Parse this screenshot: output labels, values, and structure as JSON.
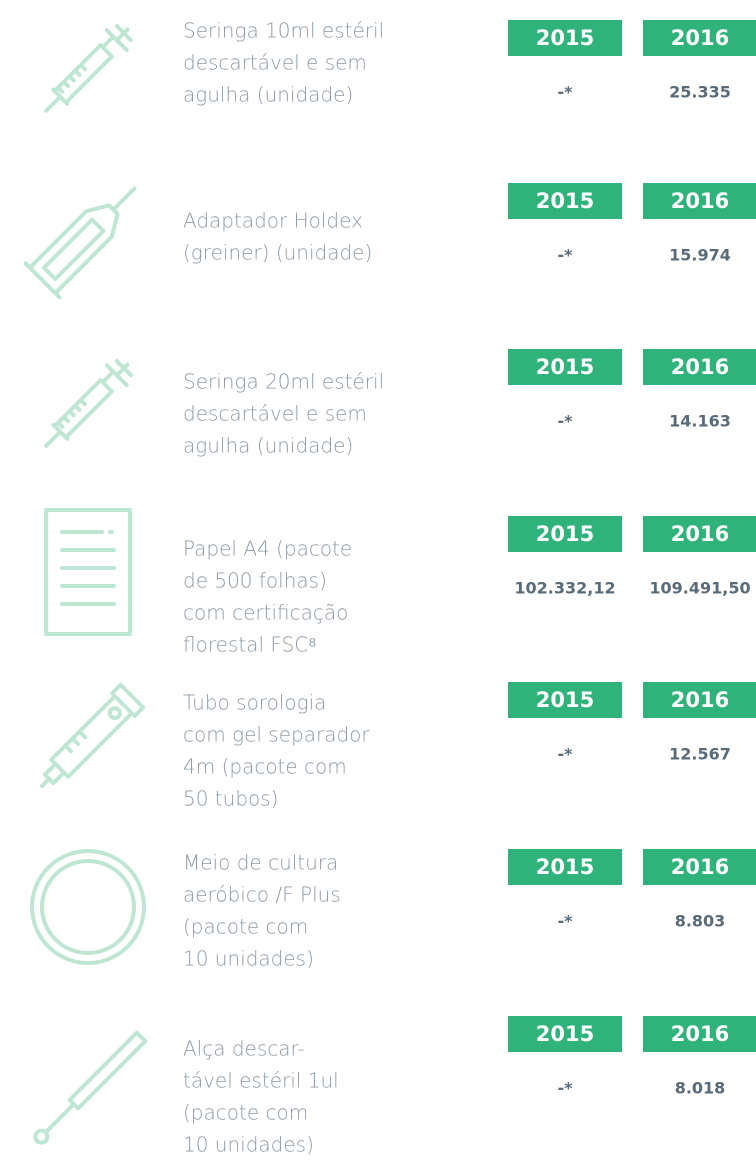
{
  "items": [
    {
      "name": [
        "Seringa 10ml estéril",
        "descartável e sem",
        "agulha (unidade)"
      ],
      "years": [
        "2015",
        "2016"
      ],
      "values": [
        "-*",
        "25.335"
      ]
    },
    {
      "name": [
        "Adaptador Holdex",
        "(greiner) (unidade)"
      ],
      "years": [
        "2015",
        "2016"
      ],
      "values": [
        "-*",
        "15.974"
      ]
    },
    {
      "name": [
        "Seringa 20ml estéril",
        "descartável e sem",
        "agulha (unidade)"
      ],
      "years": [
        "2015",
        "2016"
      ],
      "values": [
        "-*",
        "14.163"
      ]
    },
    {
      "name": [
        "Papel A4 (pacote",
        "de 500 folhas)",
        "com certificação",
        "florestal FSC⁸"
      ],
      "years": [
        "2015",
        "2016"
      ],
      "values": [
        "102.332,12",
        "109.491,50"
      ]
    },
    {
      "name": [
        "Tubo sorologia",
        "com gel separador",
        "4m (pacote com",
        "50 tubos)"
      ],
      "years": [
        "2015",
        "2016"
      ],
      "values": [
        "-*",
        "12.567"
      ]
    },
    {
      "name": [
        "Meio de cultura",
        "aeróbico /F Plus",
        "(pacote com",
        "10 unidades)"
      ],
      "years": [
        "2015",
        "2016"
      ],
      "values": [
        "-*",
        "8.803"
      ]
    },
    {
      "name": [
        "Alça descar-",
        "tável estéril 1ul",
        "(pacote com",
        "10 unidades)"
      ],
      "years": [
        "2015",
        "2016"
      ],
      "values": [
        "-*",
        "8.018"
      ]
    }
  ]
}
